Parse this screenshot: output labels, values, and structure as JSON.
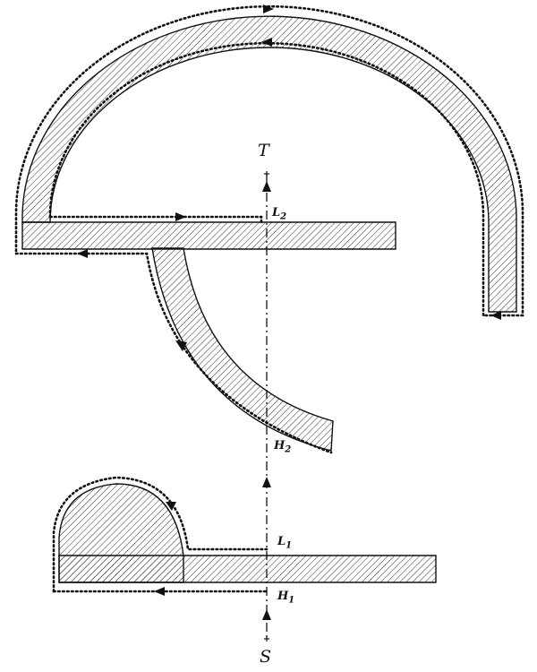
{
  "labels": {
    "T": "T",
    "S": "S",
    "L2": "L",
    "L2_sub": "2",
    "H2": "H",
    "H2_sub": "2",
    "L1": "L",
    "L1_sub": "1",
    "H1": "H",
    "H1_sub": "1"
  },
  "colors": {
    "stroke": "#111111",
    "hatch": "#222222",
    "background": "#ffffff"
  }
}
